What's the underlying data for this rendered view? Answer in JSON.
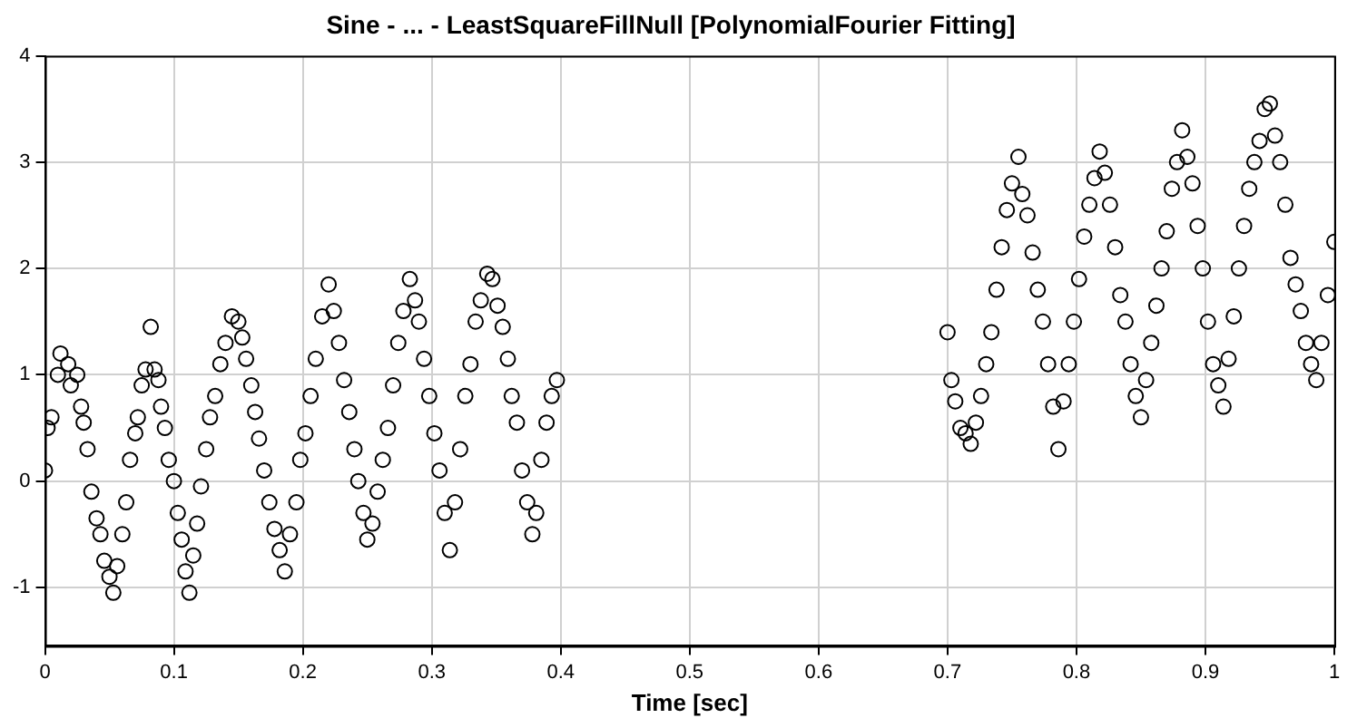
{
  "chart_data": {
    "type": "scatter",
    "title": "Sine - ... - LeastSquareFillNull [PolynomialFourier Fitting]",
    "xlabel": "Time [sec]",
    "xlim": [
      0,
      1
    ],
    "xticks": [
      0,
      0.1,
      0.2,
      0.3,
      0.4,
      0.5,
      0.6,
      0.7,
      0.8,
      0.9,
      1
    ],
    "ylim": [
      -1.55,
      4
    ],
    "yticks": [
      -1,
      0,
      1,
      2,
      3,
      4
    ],
    "grid": true,
    "legend": false,
    "marker": "circle",
    "series": [
      {
        "color": "#000000",
        "x": [
          0,
          0.002,
          0.005,
          0.01,
          0.012,
          0.018,
          0.02,
          0.025,
          0.028,
          0.03,
          0.033,
          0.036,
          0.04,
          0.043,
          0.046,
          0.05,
          0.053,
          0.056,
          0.06,
          0.063,
          0.066,
          0.07,
          0.072,
          0.075,
          0.078,
          0.082,
          0.085,
          0.088,
          0.09,
          0.093,
          0.096,
          0.1,
          0.103,
          0.106,
          0.109,
          0.112,
          0.115,
          0.118,
          0.121,
          0.125,
          0.128,
          0.132,
          0.136,
          0.14,
          0.145,
          0.15,
          0.153,
          0.156,
          0.16,
          0.163,
          0.166,
          0.17,
          0.174,
          0.178,
          0.182,
          0.186,
          0.19,
          0.195,
          0.198,
          0.202,
          0.206,
          0.21,
          0.215,
          0.22,
          0.224,
          0.228,
          0.232,
          0.236,
          0.24,
          0.243,
          0.247,
          0.25,
          0.254,
          0.258,
          0.262,
          0.266,
          0.27,
          0.274,
          0.278,
          0.283,
          0.287,
          0.29,
          0.294,
          0.298,
          0.302,
          0.306,
          0.31,
          0.314,
          0.318,
          0.322,
          0.326,
          0.33,
          0.334,
          0.338,
          0.343,
          0.347,
          0.351,
          0.355,
          0.359,
          0.362,
          0.366,
          0.37,
          0.374,
          0.378,
          0.381,
          0.385,
          0.389,
          0.393,
          0.397,
          0.7,
          0.703,
          0.706,
          0.71,
          0.714,
          0.718,
          0.722,
          0.726,
          0.73,
          0.734,
          0.738,
          0.742,
          0.746,
          0.75,
          0.755,
          0.758,
          0.762,
          0.766,
          0.77,
          0.774,
          0.778,
          0.782,
          0.786,
          0.79,
          0.794,
          0.798,
          0.802,
          0.806,
          0.81,
          0.814,
          0.818,
          0.822,
          0.826,
          0.83,
          0.834,
          0.838,
          0.842,
          0.846,
          0.85,
          0.854,
          0.858,
          0.862,
          0.866,
          0.87,
          0.874,
          0.878,
          0.882,
          0.886,
          0.89,
          0.894,
          0.898,
          0.902,
          0.906,
          0.91,
          0.914,
          0.918,
          0.922,
          0.926,
          0.93,
          0.934,
          0.938,
          0.942,
          0.946,
          0.95,
          0.954,
          0.958,
          0.962,
          0.966,
          0.97,
          0.974,
          0.978,
          0.982,
          0.986,
          0.99,
          0.995,
          1
        ],
        "values": [
          0.1,
          0.5,
          0.6,
          1.0,
          1.2,
          1.1,
          0.9,
          1.0,
          0.7,
          0.55,
          0.3,
          -0.1,
          -0.35,
          -0.5,
          -0.75,
          -0.9,
          -1.05,
          -0.8,
          -0.5,
          -0.2,
          0.2,
          0.45,
          0.6,
          0.9,
          1.05,
          1.45,
          1.05,
          0.95,
          0.7,
          0.5,
          0.2,
          0.0,
          -0.3,
          -0.55,
          -0.85,
          -1.05,
          -0.7,
          -0.4,
          -0.05,
          0.3,
          0.6,
          0.8,
          1.1,
          1.3,
          1.55,
          1.5,
          1.35,
          1.15,
          0.9,
          0.65,
          0.4,
          0.1,
          -0.2,
          -0.45,
          -0.65,
          -0.85,
          -0.5,
          -0.2,
          0.2,
          0.45,
          0.8,
          1.15,
          1.55,
          1.85,
          1.6,
          1.3,
          0.95,
          0.65,
          0.3,
          0.0,
          -0.3,
          -0.55,
          -0.4,
          -0.1,
          0.2,
          0.5,
          0.9,
          1.3,
          1.6,
          1.9,
          1.7,
          1.5,
          1.15,
          0.8,
          0.45,
          0.1,
          -0.3,
          -0.65,
          -0.2,
          0.3,
          0.8,
          1.1,
          1.5,
          1.7,
          1.95,
          1.9,
          1.65,
          1.45,
          1.15,
          0.8,
          0.55,
          0.1,
          -0.2,
          -0.5,
          -0.3,
          0.2,
          0.55,
          0.8,
          0.95,
          1.4,
          0.95,
          0.75,
          0.5,
          0.45,
          0.35,
          0.55,
          0.8,
          1.1,
          1.4,
          1.8,
          2.2,
          2.55,
          2.8,
          3.05,
          2.7,
          2.5,
          2.15,
          1.8,
          1.5,
          1.1,
          0.7,
          0.3,
          0.75,
          1.1,
          1.5,
          1.9,
          2.3,
          2.6,
          2.85,
          3.1,
          2.9,
          2.6,
          2.2,
          1.75,
          1.5,
          1.1,
          0.8,
          0.6,
          0.95,
          1.3,
          1.65,
          2.0,
          2.35,
          2.75,
          3.0,
          3.3,
          3.05,
          2.8,
          2.4,
          2.0,
          1.5,
          1.1,
          0.9,
          0.7,
          1.15,
          1.55,
          2.0,
          2.4,
          2.75,
          3.0,
          3.2,
          3.5,
          3.55,
          3.25,
          3.0,
          2.6,
          2.1,
          1.85,
          1.6,
          1.3,
          1.1,
          0.95,
          1.3,
          1.75,
          2.25
        ]
      }
    ]
  }
}
